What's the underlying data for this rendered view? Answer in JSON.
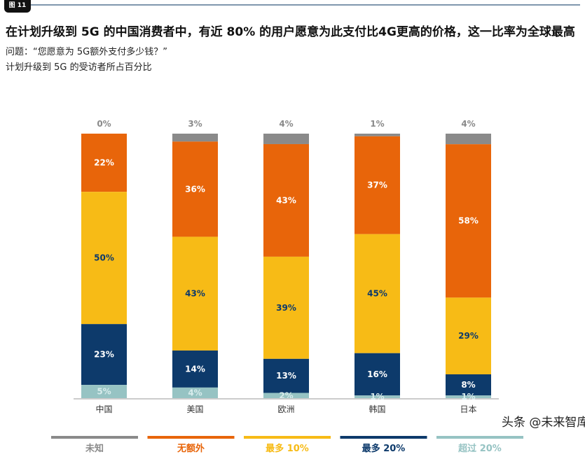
{
  "figure_tag": "图 11",
  "title": "在计划升级到 5G 的中国消费者中，有近 80% 的用户愿意为此支付比4G更高的价格，这一比率为全球最高",
  "question": "问题：“您愿意为 5G额外支付多少钱？”",
  "subtitle": "计划升级到 5G 的受访者所占百分比",
  "watermark": "头条 @未来智库",
  "chart_data": {
    "type": "bar",
    "stacked": true,
    "ylim": [
      0,
      100
    ],
    "grid": false,
    "legend_placement": "bottom",
    "categories": [
      "中国",
      "美国",
      "欧洲",
      "韩国",
      "日本"
    ],
    "series": [
      {
        "name": "未知",
        "color": "#8a8a8a",
        "values": [
          0,
          3,
          4,
          1,
          4
        ]
      },
      {
        "name": "无额外",
        "color": "#e8650a",
        "values": [
          22,
          36,
          43,
          37,
          58
        ]
      },
      {
        "name": "最多 10%",
        "color": "#f7bb16",
        "values": [
          50,
          43,
          39,
          45,
          29
        ]
      },
      {
        "name": "最多 20%",
        "color": "#0d3a6b",
        "values": [
          23,
          14,
          13,
          16,
          8
        ]
      },
      {
        "name": "超过 20%",
        "color": "#96c3c3",
        "values": [
          5,
          4,
          2,
          1,
          1
        ]
      }
    ]
  }
}
